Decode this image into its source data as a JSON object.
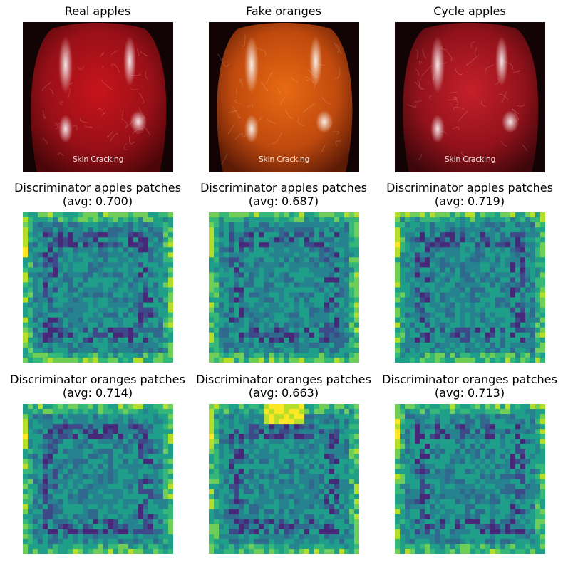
{
  "colors": {
    "real_apple": [
      "#c7141b",
      "#9a1018",
      "#4a0608"
    ],
    "fake_orange": [
      "#e86a12",
      "#c04a0e",
      "#5a1a06"
    ],
    "cycle_apple": [
      "#c5202a",
      "#93121b",
      "#3e070b"
    ],
    "viridis": [
      "#440154",
      "#482878",
      "#3e4989",
      "#31688e",
      "#26828e",
      "#1f9e89",
      "#35b779",
      "#6ece58",
      "#b5de2b",
      "#fde725"
    ]
  },
  "panels": [
    {
      "name": "real-apples-image",
      "title": "Real apples",
      "kind": "photo",
      "palette": "real_apple",
      "watermark": "Skin Cracking"
    },
    {
      "name": "fake-oranges-image",
      "title": "Fake oranges",
      "kind": "photo",
      "palette": "fake_orange",
      "watermark": "Skin Cracking"
    },
    {
      "name": "cycle-apples-image",
      "title": "Cycle apples",
      "kind": "photo",
      "palette": "cycle_apple",
      "watermark": "Skin Cracking"
    },
    {
      "name": "disc-apples-real",
      "title": "Discriminator apples patches",
      "subtitle": "(avg: 0.700)",
      "kind": "heat",
      "seed": 11
    },
    {
      "name": "disc-apples-fake",
      "title": "Discriminator apples patches",
      "subtitle": "(avg: 0.687)",
      "kind": "heat",
      "seed": 23
    },
    {
      "name": "disc-apples-cycle",
      "title": "Discriminator apples patches",
      "subtitle": "(avg: 0.719)",
      "kind": "heat",
      "seed": 37
    },
    {
      "name": "disc-oranges-real",
      "title": "Discriminator oranges patches",
      "subtitle": "(avg: 0.714)",
      "kind": "heat",
      "seed": 41
    },
    {
      "name": "disc-oranges-fake",
      "title": "Discriminator oranges patches",
      "subtitle": "(avg: 0.663)",
      "kind": "heat",
      "seed": 53
    },
    {
      "name": "disc-oranges-cycle",
      "title": "Discriminator oranges patches",
      "subtitle": "(avg: 0.713)",
      "kind": "heat",
      "seed": 67
    }
  ]
}
